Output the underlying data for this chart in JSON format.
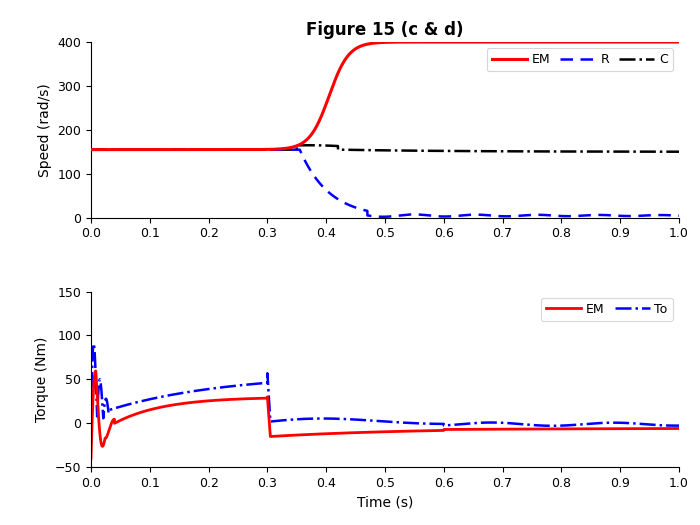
{
  "title": "Figure 15 (c & d)",
  "top": {
    "ylabel": "Speed (rad/s)",
    "ylim": [
      0,
      400
    ],
    "yticks": [
      0,
      100,
      200,
      300,
      400
    ],
    "xlim": [
      0,
      1
    ],
    "xticks": [
      0,
      0.1,
      0.2,
      0.3,
      0.4,
      0.5,
      0.6,
      0.7,
      0.8,
      0.9,
      1.0
    ],
    "legend_labels": [
      "EM",
      "R",
      "C"
    ],
    "em_color": "#FF0000",
    "r_color": "#0000FF",
    "c_color": "#000000"
  },
  "bottom": {
    "ylabel": "Torque (Nm)",
    "xlabel": "Time (s)",
    "ylim": [
      -50,
      150
    ],
    "yticks": [
      -50,
      0,
      50,
      100,
      150
    ],
    "xlim": [
      0,
      1
    ],
    "xticks": [
      0,
      0.1,
      0.2,
      0.3,
      0.4,
      0.5,
      0.6,
      0.7,
      0.8,
      0.9,
      1.0
    ],
    "legend_labels": [
      "EM",
      "To"
    ],
    "em_color": "#FF0000",
    "to_color": "#0000FF"
  }
}
